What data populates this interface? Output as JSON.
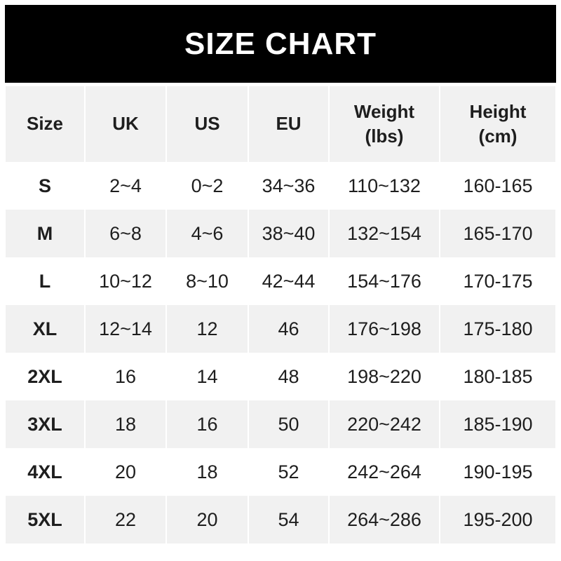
{
  "banner": {
    "title": "SIZE CHART",
    "bg_color": "#000000",
    "text_color": "#ffffff"
  },
  "colors": {
    "row_bg": "#ffffff",
    "row_alt_bg": "#f1f1f1",
    "header_bg": "#f1f1f1",
    "text": "#1e1e1e"
  },
  "chart_data": {
    "type": "table",
    "title": "SIZE CHART",
    "columns": [
      {
        "key": "size",
        "label": "Size",
        "sublabel": ""
      },
      {
        "key": "uk",
        "label": "UK",
        "sublabel": ""
      },
      {
        "key": "us",
        "label": "US",
        "sublabel": ""
      },
      {
        "key": "eu",
        "label": "EU",
        "sublabel": ""
      },
      {
        "key": "weight_lbs",
        "label": "Weight",
        "sublabel": "(lbs)"
      },
      {
        "key": "height_cm",
        "label": "Height",
        "sublabel": "(cm)"
      }
    ],
    "rows": [
      {
        "size": "S",
        "uk": "2~4",
        "us": "0~2",
        "eu": "34~36",
        "weight_lbs": "110~132",
        "height_cm": "160-165"
      },
      {
        "size": "M",
        "uk": "6~8",
        "us": "4~6",
        "eu": "38~40",
        "weight_lbs": "132~154",
        "height_cm": "165-170"
      },
      {
        "size": "L",
        "uk": "10~12",
        "us": "8~10",
        "eu": "42~44",
        "weight_lbs": "154~176",
        "height_cm": "170-175"
      },
      {
        "size": "XL",
        "uk": "12~14",
        "us": "12",
        "eu": "46",
        "weight_lbs": "176~198",
        "height_cm": "175-180"
      },
      {
        "size": "2XL",
        "uk": "16",
        "us": "14",
        "eu": "48",
        "weight_lbs": "198~220",
        "height_cm": "180-185"
      },
      {
        "size": "3XL",
        "uk": "18",
        "us": "16",
        "eu": "50",
        "weight_lbs": "220~242",
        "height_cm": "185-190"
      },
      {
        "size": "4XL",
        "uk": "20",
        "us": "18",
        "eu": "52",
        "weight_lbs": "242~264",
        "height_cm": "190-195"
      },
      {
        "size": "5XL",
        "uk": "22",
        "us": "20",
        "eu": "54",
        "weight_lbs": "264~286",
        "height_cm": "195-200"
      }
    ]
  }
}
